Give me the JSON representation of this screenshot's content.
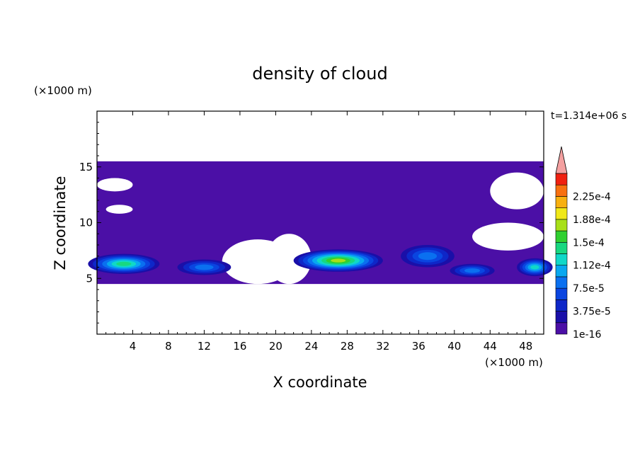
{
  "chart_data": {
    "type": "heatmap",
    "title": "density of cloud",
    "xlabel": "X coordinate",
    "ylabel": "Z coordinate",
    "x_unit": "(×1000 m)",
    "y_unit": "(×1000 m)",
    "time_label": "t=1.314e+06 s",
    "xlim": [
      0,
      50
    ],
    "ylim": [
      0,
      20
    ],
    "x_ticks": [
      4,
      8,
      12,
      16,
      20,
      24,
      28,
      32,
      36,
      40,
      44,
      48
    ],
    "y_ticks": [
      5,
      10,
      15
    ],
    "colorbar": {
      "levels": [
        {
          "value": 1e-16,
          "color": "#4b0fa6"
        },
        {
          "value": 1.875e-05,
          "color": "#1a0fa8"
        },
        {
          "value": 3.75e-05,
          "color": "#0e27c8"
        },
        {
          "value": 5.625e-05,
          "color": "#0a45e0"
        },
        {
          "value": 7.5e-05,
          "color": "#0a70f0"
        },
        {
          "value": 9.375e-05,
          "color": "#08a8f0"
        },
        {
          "value": 0.000112,
          "color": "#10d8c8"
        },
        {
          "value": 0.000131,
          "color": "#18d880"
        },
        {
          "value": 0.00015,
          "color": "#30d030"
        },
        {
          "value": 0.000169,
          "color": "#a8e018"
        },
        {
          "value": 0.000188,
          "color": "#f0e818"
        },
        {
          "value": 0.000206,
          "color": "#f8b010"
        },
        {
          "value": 0.000225,
          "color": "#f87010"
        },
        {
          "value": 0.000244,
          "color": "#f02010"
        }
      ],
      "over_color": "#f4a0a0",
      "labels": [
        "1e-16",
        "3.75e-5",
        "7.5e-5",
        "1.12e-4",
        "1.5e-4",
        "1.88e-4",
        "2.25e-4"
      ]
    },
    "upper_layer": {
      "z_range": [
        4.5,
        15.5
      ],
      "x_range": [
        0,
        50
      ],
      "level_index": 0
    },
    "cores": [
      {
        "x_center": 3,
        "z_center": 6.3,
        "x_halfwidth": 4,
        "z_halfwidth": 0.9,
        "peak_level": 7
      },
      {
        "x_center": 27,
        "z_center": 6.6,
        "x_halfwidth": 5,
        "z_halfwidth": 1.0,
        "peak_level": 9
      },
      {
        "x_center": 49,
        "z_center": 6.0,
        "x_halfwidth": 2,
        "z_halfwidth": 0.8,
        "peak_level": 6
      },
      {
        "x_center": 12,
        "z_center": 6.0,
        "x_halfwidth": 3,
        "z_halfwidth": 0.7,
        "peak_level": 4
      },
      {
        "x_center": 37,
        "z_center": 7.0,
        "x_halfwidth": 3,
        "z_halfwidth": 1.0,
        "peak_level": 4
      },
      {
        "x_center": 42,
        "z_center": 5.7,
        "x_halfwidth": 2.5,
        "z_halfwidth": 0.6,
        "peak_level": 4
      }
    ],
    "gaps": [
      {
        "x_range": [
          0,
          4
        ],
        "z_range": [
          12.8,
          14.0
        ]
      },
      {
        "x_range": [
          1,
          4
        ],
        "z_range": [
          10.8,
          11.6
        ]
      },
      {
        "x_range": [
          44,
          50
        ],
        "z_range": [
          11.2,
          14.5
        ]
      },
      {
        "x_range": [
          42,
          50
        ],
        "z_range": [
          7.5,
          10.0
        ]
      },
      {
        "x_range": [
          14,
          22
        ],
        "z_range": [
          4.5,
          8.5
        ]
      },
      {
        "x_range": [
          19,
          24
        ],
        "z_range": [
          4.5,
          9.0
        ]
      }
    ]
  }
}
